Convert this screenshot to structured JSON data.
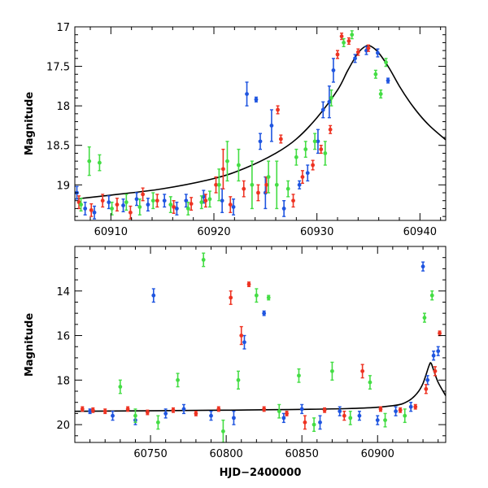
{
  "chart_data": [
    {
      "type": "scatter",
      "panel": "top",
      "xlabel": "",
      "ylabel": "Magnitude",
      "xlim": [
        60906.5,
        60942.5
      ],
      "ylim": [
        19.45,
        17.0
      ],
      "y_inverted": true,
      "x_ticks": [
        60910,
        60920,
        60930,
        60940
      ],
      "y_ticks": [
        17,
        17.5,
        18,
        18.5,
        19
      ],
      "colors": {
        "blue": "#1f55e0",
        "red": "#ee3322",
        "green": "#44dd44",
        "model": "#000000"
      },
      "model_curve": {
        "x": [
          60906.5,
          60910,
          60915,
          60920,
          60923,
          60926,
          60928,
          60930,
          60932,
          60933,
          60934,
          60934.8,
          60935.3,
          60936,
          60937,
          60938,
          60939,
          60940,
          60941,
          60942.5
        ],
        "y": [
          19.18,
          19.13,
          19.05,
          18.92,
          18.79,
          18.6,
          18.42,
          18.15,
          17.8,
          17.55,
          17.33,
          17.24,
          17.25,
          17.33,
          17.52,
          17.75,
          17.95,
          18.12,
          18.26,
          18.43
        ]
      },
      "series": [
        {
          "color": "blue",
          "x": [
            60906.7,
            60907.5,
            60908.4,
            60909.8,
            60911.2,
            60912.5,
            60913.6,
            60915.2,
            60916.4,
            60917.3,
            60919.0,
            60920.8,
            60921.9,
            60923.2,
            60924.1,
            60924.5,
            60925.0,
            60925.6,
            60926.8,
            60928.3,
            60929.1,
            60930.1,
            60930.6,
            60931.2,
            60931.6,
            60933.7,
            60934.8,
            60935.9,
            60936.9
          ],
          "y": [
            19.1,
            19.3,
            19.35,
            19.22,
            19.26,
            19.18,
            19.25,
            19.2,
            19.3,
            19.2,
            19.15,
            19.2,
            19.28,
            17.85,
            17.92,
            18.45,
            19.1,
            18.25,
            19.3,
            19.0,
            18.85,
            18.45,
            18.05,
            17.95,
            17.55,
            17.4,
            17.3,
            17.33,
            17.68
          ],
          "err": [
            0.08,
            0.08,
            0.08,
            0.08,
            0.08,
            0.08,
            0.08,
            0.08,
            0.08,
            0.08,
            0.08,
            0.15,
            0.1,
            0.15,
            0.03,
            0.1,
            0.2,
            0.2,
            0.1,
            0.05,
            0.1,
            0.15,
            0.1,
            0.2,
            0.15,
            0.05,
            0.05,
            0.05,
            0.03
          ]
        },
        {
          "color": "red",
          "x": [
            60906.9,
            60908.1,
            60909.2,
            60910.6,
            60911.9,
            60913.1,
            60914.5,
            60916.1,
            60917.8,
            60919.2,
            60920.2,
            60920.9,
            60921.6,
            60922.9,
            60924.3,
            60925.1,
            60926.2,
            60926.5,
            60927.7,
            60928.6,
            60929.6,
            60930.4,
            60931.3,
            60932.0,
            60932.4,
            60933.1,
            60934.0,
            60935.0
          ],
          "y": [
            19.22,
            19.32,
            19.2,
            19.25,
            19.35,
            19.12,
            19.2,
            19.28,
            19.24,
            19.2,
            19.0,
            18.8,
            19.25,
            19.05,
            19.1,
            19.0,
            18.05,
            18.42,
            19.2,
            18.9,
            18.75,
            18.55,
            18.3,
            17.35,
            17.12,
            17.18,
            17.32,
            17.27
          ],
          "err": [
            0.08,
            0.08,
            0.08,
            0.08,
            0.08,
            0.08,
            0.08,
            0.08,
            0.08,
            0.08,
            0.1,
            0.25,
            0.1,
            0.1,
            0.1,
            0.1,
            0.05,
            0.05,
            0.08,
            0.08,
            0.06,
            0.05,
            0.05,
            0.05,
            0.04,
            0.04,
            0.04,
            0.04
          ]
        },
        {
          "color": "green",
          "x": [
            60907.1,
            60907.9,
            60908.9,
            60910.1,
            60911.5,
            60912.8,
            60914.1,
            60915.8,
            60917.5,
            60918.8,
            60919.6,
            60920.5,
            60921.3,
            60922.4,
            60923.7,
            60925.3,
            60926.1,
            60927.2,
            60928.0,
            60928.9,
            60929.8,
            60930.8,
            60931.4,
            60932.6,
            60933.4,
            60935.7,
            60936.2,
            60936.7
          ],
          "y": [
            19.25,
            18.7,
            18.72,
            19.3,
            19.22,
            19.28,
            19.2,
            19.25,
            19.3,
            19.22,
            19.18,
            19.0,
            18.7,
            18.75,
            19.0,
            18.9,
            19.0,
            19.05,
            18.65,
            18.55,
            18.45,
            18.6,
            17.9,
            17.2,
            17.1,
            17.6,
            17.85,
            17.45
          ],
          "err": [
            0.08,
            0.18,
            0.1,
            0.08,
            0.1,
            0.1,
            0.1,
            0.1,
            0.08,
            0.08,
            0.1,
            0.2,
            0.25,
            0.2,
            0.3,
            0.2,
            0.3,
            0.1,
            0.1,
            0.1,
            0.1,
            0.15,
            0.1,
            0.05,
            0.05,
            0.05,
            0.05,
            0.05
          ]
        }
      ]
    },
    {
      "type": "scatter",
      "panel": "bottom",
      "xlabel": "HJD−2400000",
      "ylabel": "Magnitude",
      "xlim": [
        60700,
        60945
      ],
      "ylim": [
        20.8,
        12.0
      ],
      "y_inverted": true,
      "x_ticks": [
        60750,
        60800,
        60850,
        60900
      ],
      "y_ticks": [
        14,
        16,
        18,
        20
      ],
      "model_curve": {
        "x": [
          60700,
          60800,
          60880,
          60910,
          60920,
          60926,
          60930,
          60934,
          60935.3,
          60937,
          60940,
          60945
        ],
        "y": [
          19.4,
          19.35,
          19.28,
          19.15,
          18.95,
          18.6,
          18.15,
          17.35,
          17.24,
          17.55,
          18.1,
          18.7
        ]
      },
      "series": [
        {
          "color": "blue",
          "x": [
            60710,
            60725,
            60740,
            60752,
            60760,
            60772,
            60790,
            60805,
            60812,
            60825,
            60838,
            60850,
            60862,
            60875,
            60888,
            60900,
            60912,
            60922,
            60930,
            60933,
            60937,
            60940
          ],
          "y": [
            19.4,
            19.6,
            19.8,
            14.2,
            19.5,
            19.3,
            19.6,
            19.7,
            16.3,
            15.0,
            19.7,
            19.3,
            19.9,
            19.4,
            19.6,
            19.8,
            19.4,
            19.2,
            12.9,
            18.0,
            16.9,
            16.7
          ],
          "err": [
            0.1,
            0.2,
            0.2,
            0.3,
            0.2,
            0.2,
            0.2,
            0.3,
            0.3,
            0.1,
            0.2,
            0.2,
            0.3,
            0.2,
            0.2,
            0.2,
            0.2,
            0.2,
            0.2,
            0.2,
            0.2,
            0.2
          ]
        },
        {
          "color": "red",
          "x": [
            60705,
            60712,
            60720,
            60735,
            60748,
            60765,
            60780,
            60795,
            60803,
            60810,
            60815,
            60825,
            60840,
            60852,
            60865,
            60878,
            60890,
            60902,
            60915,
            60925,
            60932,
            60938,
            60941
          ],
          "y": [
            19.3,
            19.35,
            19.4,
            19.3,
            19.45,
            19.35,
            19.5,
            19.3,
            14.3,
            16.0,
            13.7,
            19.3,
            19.5,
            19.9,
            19.35,
            19.6,
            17.6,
            19.3,
            19.35,
            19.2,
            18.4,
            17.6,
            15.9
          ],
          "err": [
            0.1,
            0.1,
            0.1,
            0.1,
            0.1,
            0.1,
            0.1,
            0.1,
            0.3,
            0.4,
            0.1,
            0.1,
            0.1,
            0.3,
            0.1,
            0.2,
            0.3,
            0.1,
            0.1,
            0.1,
            0.2,
            0.2,
            0.1
          ]
        },
        {
          "color": "green",
          "x": [
            60730,
            60740,
            60755,
            60768,
            60785,
            60798,
            60808,
            60820,
            60828,
            60835,
            60848,
            60858,
            60870,
            60882,
            60895,
            60905,
            60918,
            60931,
            60936
          ],
          "y": [
            18.3,
            19.6,
            19.9,
            18.0,
            12.6,
            20.3,
            18.0,
            14.2,
            14.3,
            19.4,
            17.8,
            20.0,
            17.6,
            19.7,
            18.1,
            19.8,
            19.6,
            15.2,
            14.2
          ],
          "err": [
            0.3,
            0.3,
            0.3,
            0.3,
            0.3,
            0.5,
            0.4,
            0.3,
            0.1,
            0.3,
            0.3,
            0.3,
            0.4,
            0.3,
            0.3,
            0.3,
            0.3,
            0.2,
            0.2
          ]
        }
      ]
    }
  ]
}
